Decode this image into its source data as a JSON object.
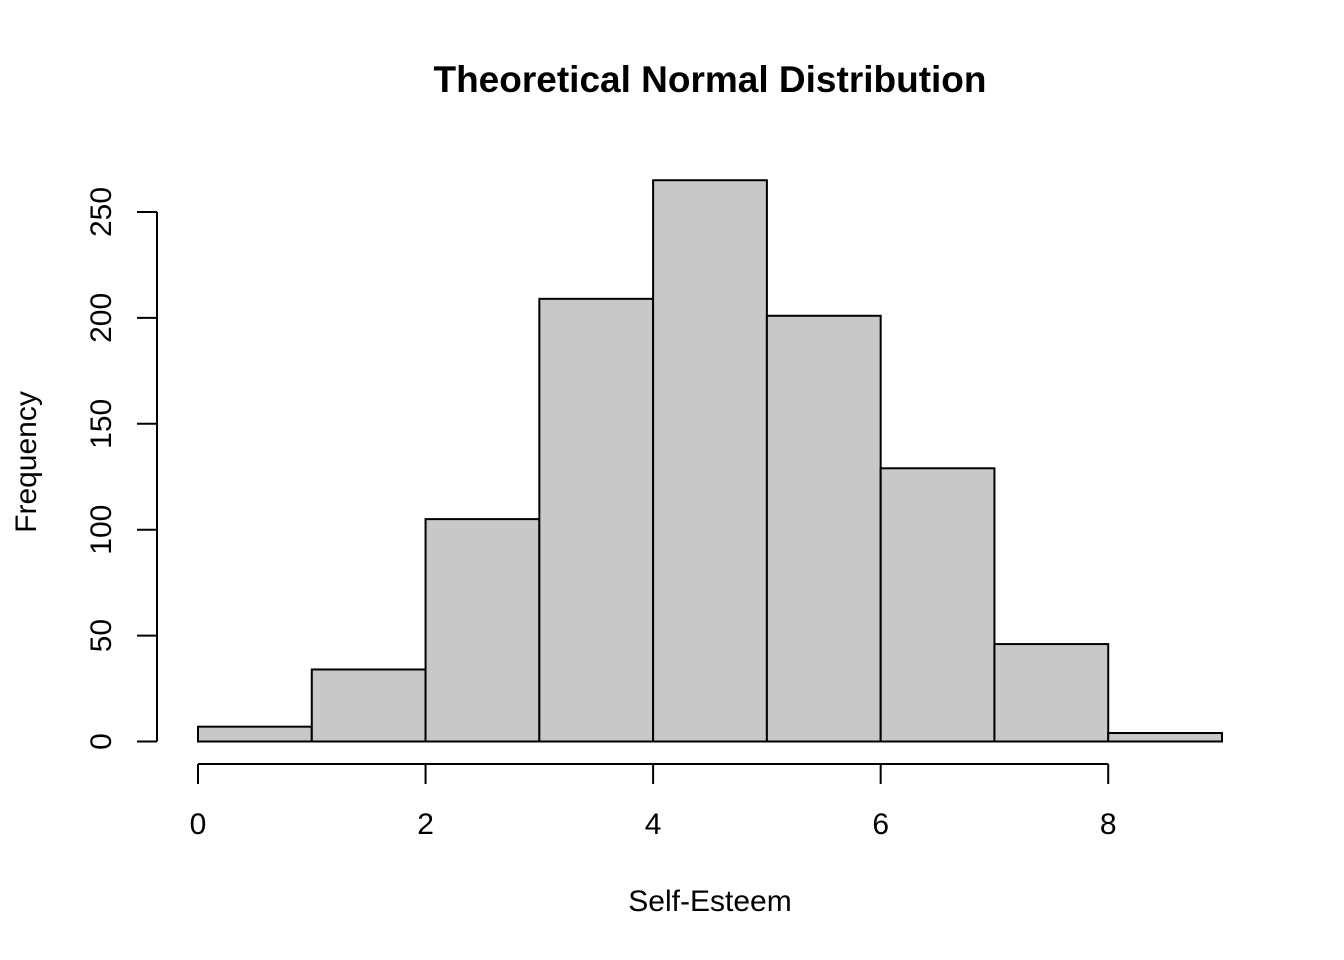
{
  "chart_data": {
    "type": "bar",
    "title": "Theoretical Normal Distribution",
    "xlabel": "Self-Esteem",
    "ylabel": "Frequency",
    "bins": [
      {
        "x0": 0,
        "x1": 1,
        "value": 7
      },
      {
        "x0": 1,
        "x1": 2,
        "value": 34
      },
      {
        "x0": 2,
        "x1": 3,
        "value": 105
      },
      {
        "x0": 3,
        "x1": 4,
        "value": 209
      },
      {
        "x0": 4,
        "x1": 5,
        "value": 265
      },
      {
        "x0": 5,
        "x1": 6,
        "value": 201
      },
      {
        "x0": 6,
        "x1": 7,
        "value": 129
      },
      {
        "x0": 7,
        "x1": 8,
        "value": 46
      },
      {
        "x0": 8,
        "x1": 9,
        "value": 4
      }
    ],
    "xticks": [
      "0",
      "2",
      "4",
      "6",
      "8"
    ],
    "yticks": [
      "0",
      "50",
      "100",
      "150",
      "200",
      "250"
    ],
    "xlim": [
      0,
      9
    ],
    "ylim": [
      0,
      265
    ],
    "bar_color": "#c8c8c8",
    "edge_color": "#000000",
    "grid": false
  }
}
